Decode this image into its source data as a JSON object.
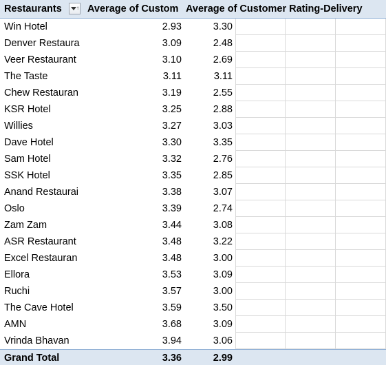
{
  "pivot": {
    "headers": {
      "row_label": "Restaurants",
      "col1": "Average of Custom",
      "col2": "Average of Customer Rating-Delivery"
    },
    "rows": [
      {
        "name": "Win Hotel",
        "v1": "2.93",
        "v2": "3.30"
      },
      {
        "name": "Denver Restaura",
        "v1": "3.09",
        "v2": "2.48"
      },
      {
        "name": "Veer Restaurant",
        "v1": "3.10",
        "v2": "2.69"
      },
      {
        "name": "The Taste",
        "v1": "3.11",
        "v2": "3.11"
      },
      {
        "name": "Chew Restauran",
        "v1": "3.19",
        "v2": "2.55"
      },
      {
        "name": "KSR Hotel",
        "v1": "3.25",
        "v2": "2.88"
      },
      {
        "name": "Willies",
        "v1": "3.27",
        "v2": "3.03"
      },
      {
        "name": "Dave Hotel",
        "v1": "3.30",
        "v2": "3.35"
      },
      {
        "name": "Sam Hotel",
        "v1": "3.32",
        "v2": "2.76"
      },
      {
        "name": "SSK Hotel",
        "v1": "3.35",
        "v2": "2.85"
      },
      {
        "name": "Anand Restaurai",
        "v1": "3.38",
        "v2": "3.07"
      },
      {
        "name": "Oslo",
        "v1": "3.39",
        "v2": "2.74"
      },
      {
        "name": "Zam Zam",
        "v1": "3.44",
        "v2": "3.08"
      },
      {
        "name": "ASR Restaurant",
        "v1": "3.48",
        "v2": "3.22"
      },
      {
        "name": "Excel Restauran",
        "v1": "3.48",
        "v2": "3.00"
      },
      {
        "name": "Ellora",
        "v1": "3.53",
        "v2": "3.09"
      },
      {
        "name": "Ruchi",
        "v1": "3.57",
        "v2": "3.00"
      },
      {
        "name": "The Cave Hotel",
        "v1": "3.59",
        "v2": "3.50"
      },
      {
        "name": "AMN",
        "v1": "3.68",
        "v2": "3.09"
      },
      {
        "name": "Vrinda Bhavan",
        "v1": "3.94",
        "v2": "3.06"
      }
    ],
    "total": {
      "name": "Grand Total",
      "v1": "3.36",
      "v2": "2.99"
    }
  },
  "colors": {
    "header_bg": "#dce6f1",
    "header_border": "#95b3d7",
    "gridline": "#d9d9d9"
  },
  "icons": {
    "filter": "filter-sort-dropdown-icon"
  }
}
